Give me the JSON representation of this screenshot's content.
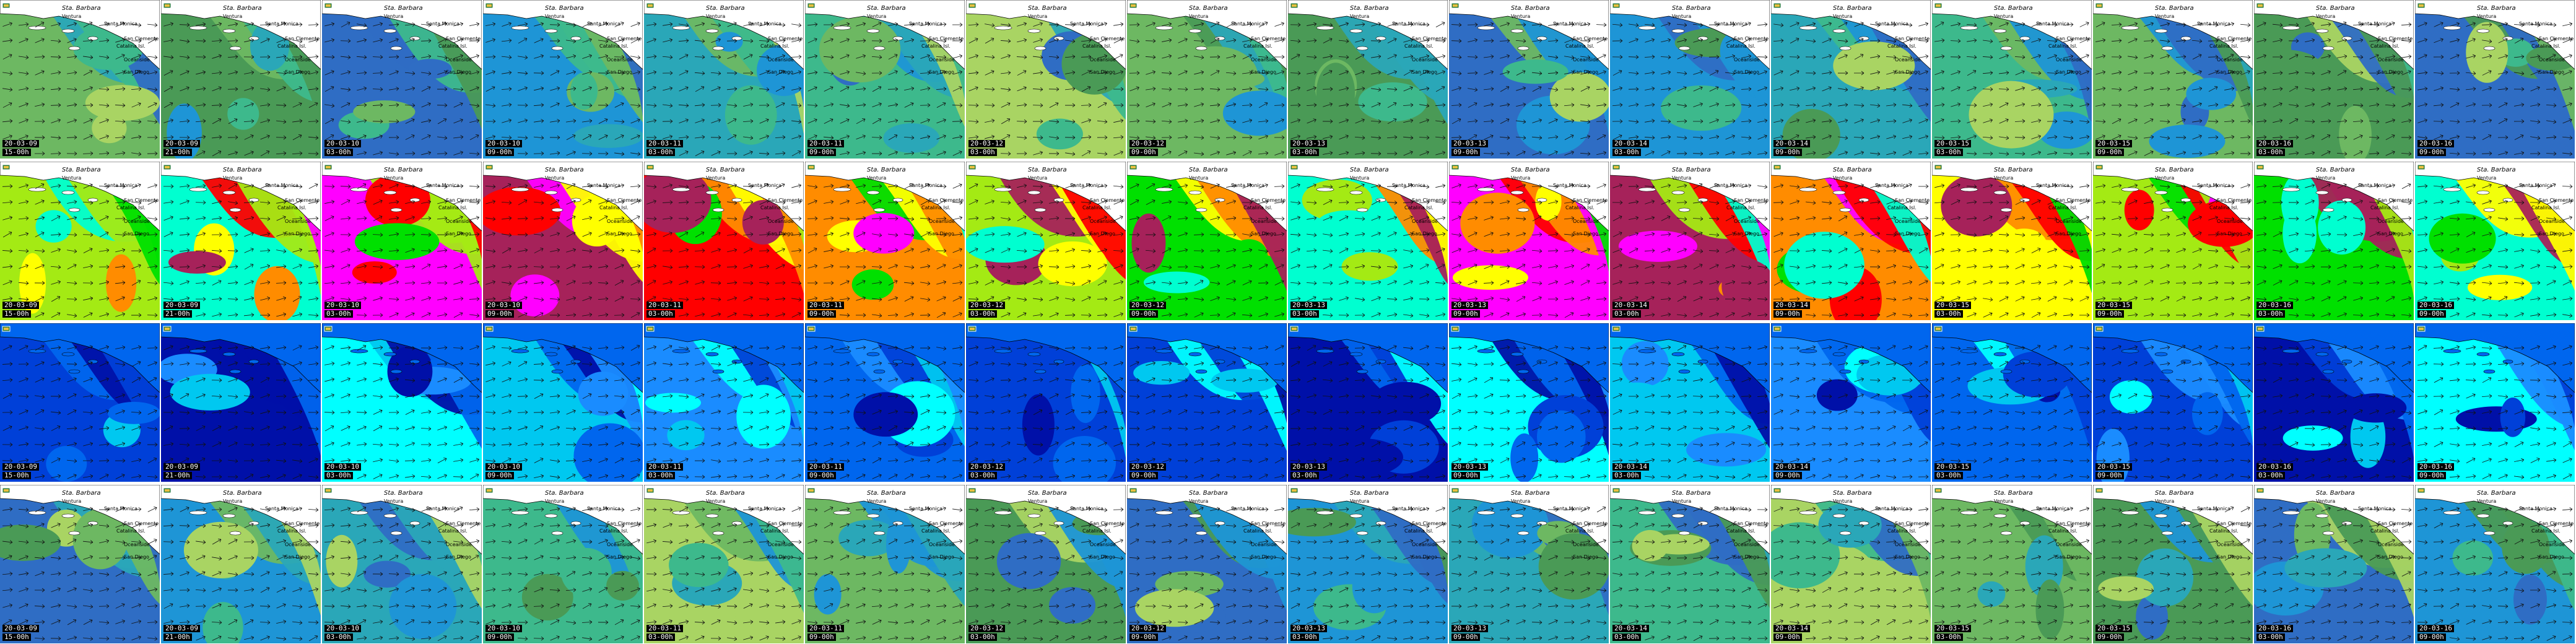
{
  "rows": [
    {
      "id": "wind",
      "palette": [
        "#4a9a56",
        "#6db862",
        "#a9d463",
        "#3db98c",
        "#2aa7b8",
        "#1e95d6",
        "#2f6dc4"
      ],
      "land": "#ffffff",
      "show_places": true
    },
    {
      "id": "gust",
      "palette": [
        "#00e000",
        "#a4ea14",
        "#ffff00",
        "#ff8c00",
        "#ff0000",
        "#a6225a",
        "#ff00ff",
        "#00ffd0"
      ],
      "land": "#ffffff",
      "show_places": true
    },
    {
      "id": "wave",
      "palette": [
        "#0040d8",
        "#0066ee",
        "#1a8cff",
        "#00c8f0",
        "#00ffff",
        "#0010a8"
      ],
      "land": "#0066ee",
      "show_places": false
    },
    {
      "id": "wind2",
      "palette": [
        "#4a9a56",
        "#6db862",
        "#a9d463",
        "#3db98c",
        "#2aa7b8",
        "#1e95d6",
        "#2f6dc4"
      ],
      "land": "#ffffff",
      "show_places": true
    }
  ],
  "frames": [
    {
      "date": "20-03-09",
      "time": "15-00h"
    },
    {
      "date": "20-03-09",
      "time": "21-00h"
    },
    {
      "date": "20-03-10",
      "time": "03-00h"
    },
    {
      "date": "20-03-10",
      "time": "09-00h"
    },
    {
      "date": "20-03-11",
      "time": "03-00h"
    },
    {
      "date": "20-03-11",
      "time": "09-00h"
    },
    {
      "date": "20-03-12",
      "time": "03-00h"
    },
    {
      "date": "20-03-12",
      "time": "09-00h"
    },
    {
      "date": "20-03-13",
      "time": "03-00h"
    },
    {
      "date": "20-03-13",
      "time": "09-00h"
    },
    {
      "date": "20-03-14",
      "time": "03-00h"
    },
    {
      "date": "20-03-14",
      "time": "09-00h"
    },
    {
      "date": "20-03-15",
      "time": "03-00h"
    },
    {
      "date": "20-03-15",
      "time": "09-00h"
    },
    {
      "date": "20-03-16",
      "time": "03-00h"
    },
    {
      "date": "20-03-16",
      "time": "09-00h"
    }
  ],
  "places": [
    {
      "name": "Sta. Barbara",
      "big": true
    },
    {
      "name": "Ventura",
      "big": false
    },
    {
      "name": "Santa Monica",
      "big": false
    },
    {
      "name": "San Clemente",
      "big": false
    },
    {
      "name": "Catalina Isl.",
      "big": false
    },
    {
      "name": "Oceanside",
      "big": false
    },
    {
      "name": "San Diego",
      "big": false
    }
  ],
  "icons": {
    "logo": "logo-icon",
    "arrow": "wind-arrow-icon"
  },
  "colors": {
    "stamp_bg": "#000000",
    "stamp_fg": "#ffffff",
    "coast": "#000000"
  }
}
